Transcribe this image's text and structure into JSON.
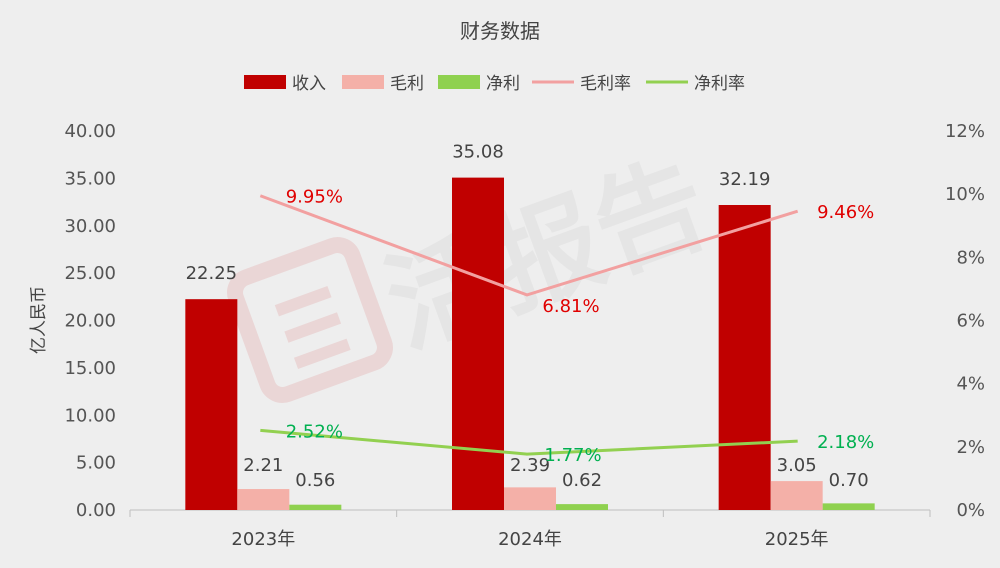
{
  "colors": {
    "background": "#eeeeee",
    "revenue": "#c00000",
    "gross_profit": "#f4b0a8",
    "net_profit": "#8fd14f",
    "gross_margin_line": "#f2a0a0",
    "net_margin_line": "#92d050",
    "gross_margin_label": "#e00000",
    "net_margin_label": "#00b050"
  },
  "watermark": "活报告 LiveReport",
  "chart_data": {
    "type": "bar",
    "title": "财务数据",
    "ylabel": "亿人民币",
    "categories": [
      "2023年",
      "2024年",
      "2025年"
    ],
    "ylim": [
      0,
      40
    ],
    "y_ticks": [
      "0.00",
      "5.00",
      "10.00",
      "15.00",
      "20.00",
      "25.00",
      "30.00",
      "35.00",
      "40.00"
    ],
    "y2lim": [
      0,
      12
    ],
    "y2_ticks": [
      "0%",
      "2%",
      "4%",
      "6%",
      "8%",
      "10%",
      "12%"
    ],
    "legend_position": "top-center",
    "grid": false,
    "series": [
      {
        "name": "收入",
        "kind": "bar",
        "axis": "left",
        "values": [
          22.25,
          35.08,
          32.19
        ],
        "labels": [
          "22.25",
          "35.08",
          "32.19"
        ]
      },
      {
        "name": "毛利",
        "kind": "bar",
        "axis": "left",
        "values": [
          2.21,
          2.39,
          3.05
        ],
        "labels": [
          "2.21",
          "2.39",
          "3.05"
        ]
      },
      {
        "name": "净利",
        "kind": "bar",
        "axis": "left",
        "values": [
          0.56,
          0.62,
          0.7
        ],
        "labels": [
          "0.56",
          "0.62",
          "0.70"
        ]
      },
      {
        "name": "毛利率",
        "kind": "line",
        "axis": "right",
        "values": [
          9.95,
          6.81,
          9.46
        ],
        "labels": [
          "9.95%",
          "6.81%",
          "9.46%"
        ]
      },
      {
        "name": "净利率",
        "kind": "line",
        "axis": "right",
        "values": [
          2.52,
          1.77,
          2.18
        ],
        "labels": [
          "2.52%",
          "1.77%",
          "2.18%"
        ]
      }
    ]
  }
}
